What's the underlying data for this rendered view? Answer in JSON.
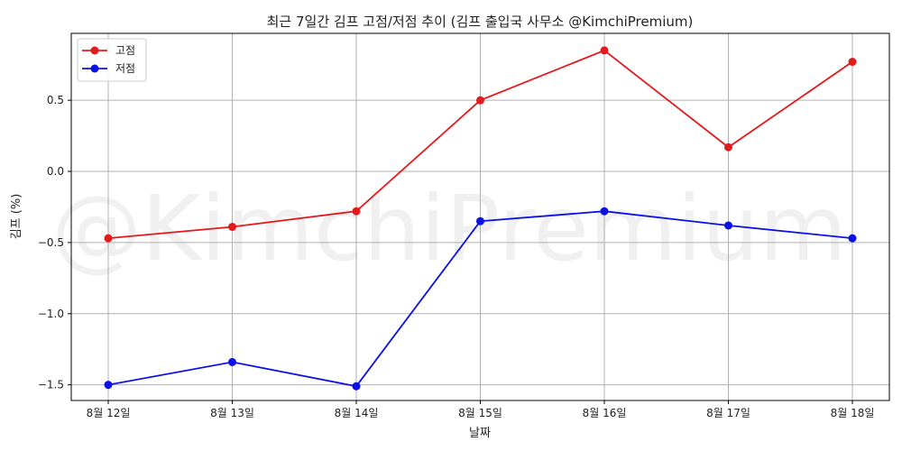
{
  "chart_data": {
    "type": "line",
    "title": "최근 7일간 김프 고점/저점 추이 (김프 출입국 사무소 @KimchiPremium)",
    "xlabel": "날짜",
    "ylabel": "김프 (%)",
    "categories": [
      "8월 12일",
      "8월 13일",
      "8월 14일",
      "8월 15일",
      "8월 16일",
      "8월 17일",
      "8월 18일"
    ],
    "y_ticks": [
      0.5,
      0.0,
      -0.5,
      -1.0,
      -1.5
    ],
    "y_tick_labels": [
      "0.5",
      "0.0",
      "−0.5",
      "−1.0",
      "−1.5"
    ],
    "ylim": [
      -1.61,
      0.97
    ],
    "grid": true,
    "legend_position": "top-left",
    "watermark": "@KimchiPremium",
    "series": [
      {
        "name": "고점",
        "color": "#e31a1c",
        "values": [
          -0.47,
          -0.39,
          -0.28,
          0.5,
          0.85,
          0.17,
          0.77
        ]
      },
      {
        "name": "저점",
        "color": "#0a10e6",
        "values": [
          -1.5,
          -1.34,
          -1.51,
          -0.35,
          -0.28,
          -0.38,
          -0.47
        ]
      }
    ]
  }
}
